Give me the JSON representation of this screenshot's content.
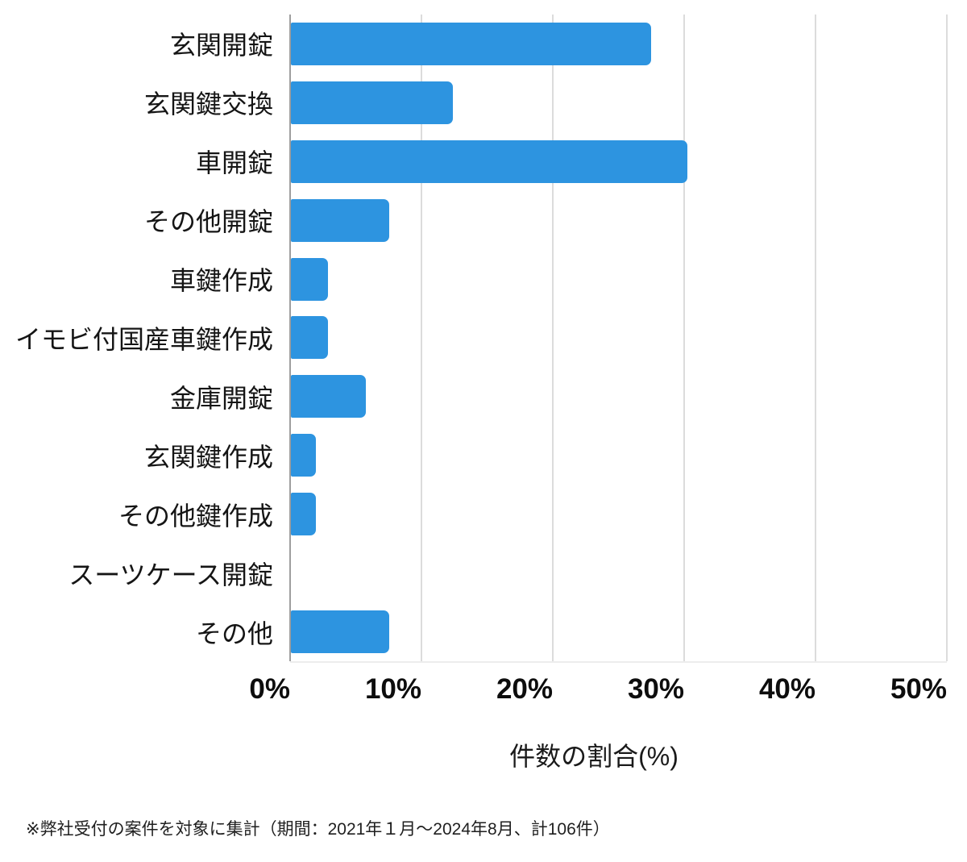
{
  "chart_data": {
    "type": "bar",
    "orientation": "horizontal",
    "title": "",
    "categories": [
      "玄関開錠",
      "玄関鍵交換",
      "車開錠",
      "その他開錠",
      "車鍵作成",
      "イモビ付国産車鍵作成",
      "金庫開錠",
      "玄関鍵作成",
      "その他鍵作成",
      "スーツケース開錠",
      "その他"
    ],
    "values": [
      27.4,
      12.3,
      30.2,
      7.5,
      2.8,
      2.8,
      5.7,
      1.9,
      1.9,
      0,
      7.5
    ],
    "xlabel": "件数の割合(%)",
    "ylabel": "",
    "x_ticks": [
      "0%",
      "10%",
      "20%",
      "30%",
      "40%",
      "50%"
    ],
    "xlim": [
      0,
      50
    ],
    "grid": "vertical-only",
    "legend": "none",
    "bar_color": "#2d94e0",
    "gridline_color": "#dcdcdc",
    "axisline_color": "#9e9e9e"
  },
  "footnote": "※弊社受付の案件を対象に集計（期間：2021年１月～2024年8月、計106件）"
}
